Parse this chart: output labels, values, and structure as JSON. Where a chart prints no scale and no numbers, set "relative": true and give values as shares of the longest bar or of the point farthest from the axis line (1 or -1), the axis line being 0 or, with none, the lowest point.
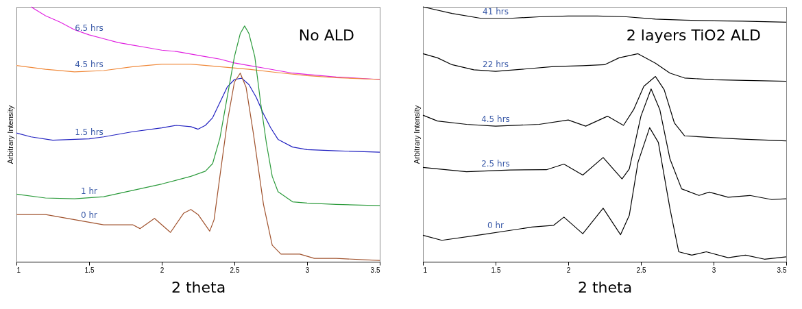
{
  "chart_data": [
    {
      "type": "line",
      "title": "No ALD",
      "xlabel": "2 theta",
      "ylabel": "Arbitrary Intensity",
      "relative": true,
      "xlim": [
        1,
        3.5
      ],
      "xticks": [
        1,
        1.5,
        2,
        2.5,
        3,
        3.5
      ],
      "legend": false,
      "grid": false,
      "series": [
        {
          "name": "6.5 hrs",
          "color": "#e020e0",
          "x": [
            1.1,
            1.2,
            1.3,
            1.4,
            1.5,
            1.6,
            1.7,
            1.8,
            1.9,
            2.0,
            2.1,
            2.2,
            2.3,
            2.4,
            2.5,
            2.6,
            2.7,
            2.8,
            2.9,
            3.0,
            3.2,
            3.5
          ],
          "values": [
            1.0,
            0.965,
            0.94,
            0.91,
            0.89,
            0.875,
            0.86,
            0.85,
            0.84,
            0.83,
            0.825,
            0.815,
            0.805,
            0.795,
            0.78,
            0.77,
            0.76,
            0.75,
            0.74,
            0.735,
            0.725,
            0.715
          ]
        },
        {
          "name": "4.5 hrs",
          "color": "#f08a3c",
          "x": [
            1.0,
            1.2,
            1.4,
            1.6,
            1.8,
            2.0,
            2.2,
            2.4,
            2.6,
            2.8,
            3.0,
            3.2,
            3.5
          ],
          "values": [
            0.77,
            0.755,
            0.745,
            0.75,
            0.765,
            0.775,
            0.775,
            0.765,
            0.755,
            0.742,
            0.73,
            0.722,
            0.715
          ]
        },
        {
          "name": "1.5 hrs",
          "color": "#2020c0",
          "x": [
            1.0,
            1.1,
            1.25,
            1.4,
            1.5,
            1.6,
            1.8,
            2.0,
            2.1,
            2.2,
            2.25,
            2.3,
            2.35,
            2.4,
            2.45,
            2.5,
            2.55,
            2.6,
            2.65,
            2.7,
            2.75,
            2.8,
            2.9,
            3.0,
            3.2,
            3.5
          ],
          "values": [
            0.505,
            0.49,
            0.477,
            0.48,
            0.482,
            0.49,
            0.51,
            0.525,
            0.535,
            0.53,
            0.52,
            0.535,
            0.565,
            0.625,
            0.685,
            0.715,
            0.72,
            0.695,
            0.645,
            0.58,
            0.525,
            0.48,
            0.45,
            0.44,
            0.435,
            0.43
          ]
        },
        {
          "name": "1 hr",
          "color": "#2a9a3a",
          "x": [
            1.0,
            1.2,
            1.4,
            1.6,
            1.8,
            2.0,
            2.2,
            2.3,
            2.35,
            2.4,
            2.45,
            2.5,
            2.54,
            2.57,
            2.6,
            2.64,
            2.68,
            2.72,
            2.76,
            2.8,
            2.9,
            3.0,
            3.2,
            3.5
          ],
          "values": [
            0.265,
            0.25,
            0.247,
            0.255,
            0.28,
            0.305,
            0.335,
            0.355,
            0.385,
            0.485,
            0.645,
            0.805,
            0.895,
            0.925,
            0.895,
            0.805,
            0.625,
            0.465,
            0.335,
            0.275,
            0.235,
            0.23,
            0.225,
            0.22
          ]
        },
        {
          "name": "0 hr",
          "color": "#a0522d",
          "x": [
            1.0,
            1.2,
            1.4,
            1.6,
            1.8,
            1.85,
            1.95,
            2.06,
            2.15,
            2.2,
            2.25,
            2.33,
            2.36,
            2.4,
            2.45,
            2.5,
            2.54,
            2.58,
            2.63,
            2.7,
            2.76,
            2.82,
            2.95,
            3.05,
            3.2,
            3.5
          ],
          "values": [
            0.185,
            0.185,
            0.165,
            0.145,
            0.145,
            0.13,
            0.17,
            0.115,
            0.19,
            0.205,
            0.185,
            0.12,
            0.165,
            0.335,
            0.545,
            0.705,
            0.74,
            0.685,
            0.505,
            0.225,
            0.065,
            0.03,
            0.03,
            0.013,
            0.013,
            0.005
          ]
        }
      ]
    },
    {
      "type": "line",
      "title": "2 layers TiO2 ALD",
      "xlabel": "2 theta",
      "ylabel": "Arbitrary Intensity",
      "relative": true,
      "xlim": [
        1,
        3.5
      ],
      "xticks": [
        1,
        1.5,
        2,
        2.5,
        3,
        3.5
      ],
      "legend": false,
      "grid": false,
      "series": [
        {
          "name": "41 hrs",
          "color": "#000000",
          "x": [
            1.0,
            1.2,
            1.4,
            1.6,
            1.8,
            2.0,
            2.2,
            2.4,
            2.6,
            2.8,
            3.0,
            3.2,
            3.5
          ],
          "values": [
            1.0,
            0.974,
            0.955,
            0.955,
            0.961,
            0.964,
            0.964,
            0.961,
            0.952,
            0.948,
            0.945,
            0.944,
            0.94
          ]
        },
        {
          "name": "22 hrs",
          "color": "#000000",
          "x": [
            1.0,
            1.1,
            1.2,
            1.35,
            1.5,
            1.7,
            1.9,
            2.1,
            2.25,
            2.35,
            2.48,
            2.6,
            2.7,
            2.8,
            3.0,
            3.5
          ],
          "values": [
            0.816,
            0.8,
            0.773,
            0.753,
            0.747,
            0.756,
            0.766,
            0.769,
            0.773,
            0.8,
            0.816,
            0.779,
            0.74,
            0.721,
            0.714,
            0.708
          ]
        },
        {
          "name": "4.5 hrs",
          "color": "#000000",
          "x": [
            1.0,
            1.1,
            1.3,
            1.5,
            1.8,
            2.0,
            2.12,
            2.27,
            2.38,
            2.45,
            2.52,
            2.6,
            2.66,
            2.73,
            2.8,
            3.0,
            3.2,
            3.5
          ],
          "values": [
            0.575,
            0.552,
            0.539,
            0.532,
            0.539,
            0.556,
            0.532,
            0.571,
            0.535,
            0.597,
            0.688,
            0.727,
            0.675,
            0.545,
            0.494,
            0.487,
            0.481,
            0.474
          ]
        },
        {
          "name": "2.5 hrs",
          "color": "#000000",
          "x": [
            1.0,
            1.3,
            1.6,
            1.85,
            1.97,
            2.1,
            2.24,
            2.37,
            2.42,
            2.5,
            2.57,
            2.63,
            2.7,
            2.78,
            2.9,
            2.97,
            3.1,
            3.25,
            3.4,
            3.5
          ],
          "values": [
            0.37,
            0.353,
            0.36,
            0.361,
            0.383,
            0.34,
            0.409,
            0.325,
            0.364,
            0.571,
            0.678,
            0.597,
            0.403,
            0.286,
            0.26,
            0.273,
            0.253,
            0.26,
            0.244,
            0.247
          ]
        },
        {
          "name": "0 hr",
          "color": "#000000",
          "x": [
            1.0,
            1.13,
            1.4,
            1.6,
            1.75,
            1.9,
            1.97,
            2.1,
            2.24,
            2.36,
            2.42,
            2.48,
            2.56,
            2.62,
            2.7,
            2.76,
            2.85,
            2.95,
            3.1,
            3.22,
            3.35,
            3.5
          ],
          "values": [
            0.104,
            0.084,
            0.106,
            0.123,
            0.136,
            0.143,
            0.175,
            0.11,
            0.21,
            0.106,
            0.182,
            0.39,
            0.526,
            0.468,
            0.208,
            0.039,
            0.026,
            0.039,
            0.016,
            0.026,
            0.01,
            0.019
          ]
        }
      ]
    }
  ]
}
